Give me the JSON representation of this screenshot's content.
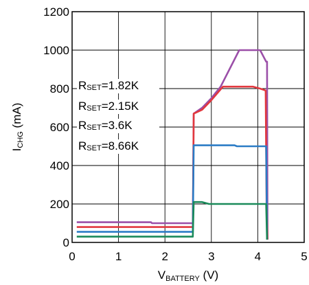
{
  "chart_data": {
    "type": "line",
    "xlabel_main": "V",
    "xlabel_sub": "BATTERY",
    "xlabel_unit": " (V)",
    "ylabel_main": "I",
    "ylabel_sub": "CHG",
    "ylabel_unit": " (mA)",
    "xlim": [
      0,
      5
    ],
    "ylim": [
      0,
      1200
    ],
    "x_ticks": [
      "0",
      "1",
      "2",
      "3",
      "4",
      "5"
    ],
    "y_ticks": [
      "0",
      "200",
      "400",
      "600",
      "800",
      "1000",
      "1200"
    ],
    "grid": true,
    "annotations": [
      {
        "main": "R",
        "sub": "SET",
        "value": "=1.82K"
      },
      {
        "main": "R",
        "sub": "SET",
        "value": "=2.15K"
      },
      {
        "main": "R",
        "sub": "SET",
        "value": "=3.6K"
      },
      {
        "main": "R",
        "sub": "SET",
        "value": "=8.66K"
      }
    ],
    "series": [
      {
        "color": "#9b4fa8",
        "x": [
          0.1,
          1.7,
          1.72,
          2.58,
          2.6,
          2.62,
          2.8,
          3.0,
          3.2,
          3.6,
          4.05,
          4.18,
          4.2,
          4.21
        ],
        "y": [
          105,
          105,
          100,
          100,
          100,
          670,
          700,
          750,
          810,
          1000,
          1000,
          940,
          940,
          15
        ]
      },
      {
        "color": "#e2383e",
        "x": [
          0.1,
          2.58,
          2.6,
          2.62,
          2.8,
          3.0,
          3.25,
          3.9,
          4.05,
          4.17,
          4.19,
          4.21
        ],
        "y": [
          80,
          80,
          80,
          670,
          690,
          740,
          810,
          810,
          800,
          790,
          200,
          15
        ]
      },
      {
        "color": "#2b7cc6",
        "x": [
          0.1,
          2.58,
          2.6,
          2.62,
          3.5,
          3.55,
          4.15,
          4.18,
          4.2
        ],
        "y": [
          55,
          55,
          55,
          505,
          505,
          500,
          500,
          500,
          15
        ]
      },
      {
        "color": "#1a8a5a",
        "x": [
          0.1,
          2.58,
          2.6,
          2.62,
          2.8,
          2.95,
          4.15,
          4.18,
          4.2
        ],
        "y": [
          30,
          30,
          30,
          210,
          210,
          200,
          200,
          200,
          15
        ]
      }
    ]
  }
}
